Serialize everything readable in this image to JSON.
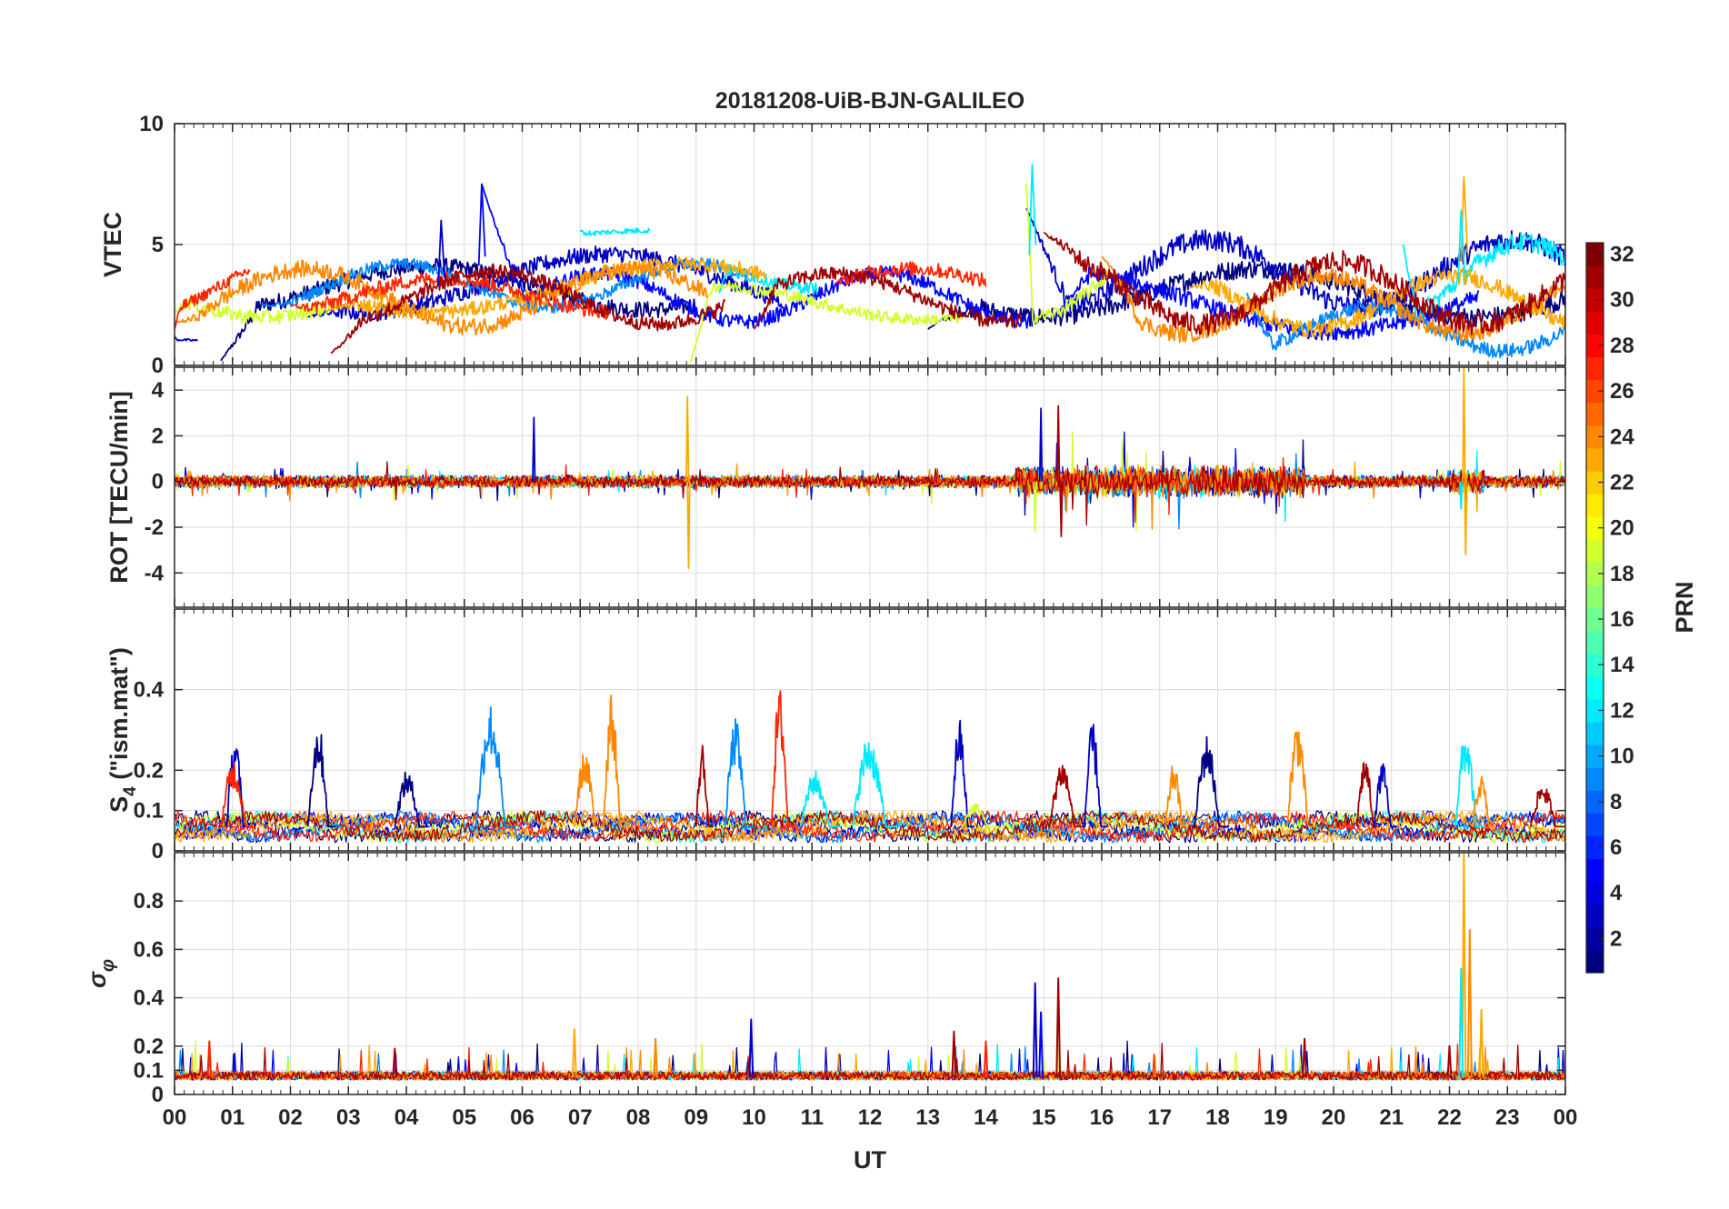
{
  "chart_data": {
    "type": "line",
    "title": "20181208-UiB-BJN-GALILEO",
    "xlabel": "UT",
    "x_ticks": [
      "00",
      "01",
      "02",
      "03",
      "04",
      "05",
      "06",
      "07",
      "08",
      "09",
      "10",
      "11",
      "12",
      "13",
      "14",
      "15",
      "16",
      "17",
      "18",
      "19",
      "20",
      "21",
      "22",
      "23",
      "00"
    ],
    "xlim": [
      0,
      24
    ],
    "grid": true,
    "colorbar": {
      "label": "PRN",
      "colormap": "jet",
      "range": [
        1,
        32
      ],
      "ticks": [
        "2",
        "4",
        "6",
        "8",
        "10",
        "12",
        "14",
        "16",
        "18",
        "20",
        "22",
        "24",
        "26",
        "28",
        "30",
        "32"
      ]
    },
    "panels": [
      {
        "id": "vtec",
        "ylabel": "VTEC",
        "ylim": [
          0,
          10
        ],
        "yticks": [
          0,
          5,
          10
        ],
        "ytick_labels": [
          "0",
          "5",
          "10"
        ],
        "series": [
          {
            "prn": 1,
            "segments": [
              {
                "t0": 0.8,
                "t1": 9.0,
                "base": 3.2,
                "amp": 0.9,
                "noise": 0.35,
                "start": 0.2
              },
              {
                "t0": 13.0,
                "t1": 24.0,
                "base": 3.0,
                "amp": 1.0,
                "noise": 0.4,
                "start": 1.5
              }
            ]
          },
          {
            "prn": 3,
            "segments": [
              {
                "t0": 0.0,
                "t1": 0.4,
                "base": 1.1,
                "amp": 0.1,
                "noise": 0.05,
                "start": 1.2
              },
              {
                "t0": 2.3,
                "t1": 10.5,
                "base": 3.4,
                "amp": 1.2,
                "noise": 0.35,
                "start": 2.0
              },
              {
                "t0": 14.7,
                "t1": 24.0,
                "base": 3.8,
                "amp": 1.4,
                "noise": 0.45,
                "start": 6.5
              }
            ]
          },
          {
            "prn": 5,
            "segments": [
              {
                "t0": 5.3,
                "t1": 14.8,
                "base": 2.8,
                "amp": 1.0,
                "noise": 0.3,
                "start": 7.5
              },
              {
                "t0": 15.2,
                "t1": 22.5,
                "base": 2.6,
                "amp": 1.2,
                "noise": 0.35,
                "start": 2.0
              }
            ]
          },
          {
            "prn": 9,
            "segments": [
              {
                "t0": 1.5,
                "t1": 10.0,
                "base": 3.3,
                "amp": 0.9,
                "noise": 0.25,
                "start": 2.5
              },
              {
                "t0": 18.5,
                "t1": 24.0,
                "base": 1.5,
                "amp": 0.9,
                "noise": 0.3,
                "start": 3.0
              }
            ]
          },
          {
            "prn": 12,
            "segments": [
              {
                "t0": 7.0,
                "t1": 8.2,
                "base": 5.3,
                "amp": 0.3,
                "noise": 0.12,
                "start": 5.6
              },
              {
                "t0": 9.4,
                "t1": 11.1,
                "base": 3.7,
                "amp": 0.5,
                "noise": 0.25,
                "start": 3.0
              },
              {
                "t0": 21.2,
                "t1": 24.0,
                "base": 3.5,
                "amp": 1.6,
                "noise": 0.4,
                "start": 5.0
              }
            ]
          },
          {
            "prn": 19,
            "segments": [
              {
                "t0": 0.0,
                "t1": 2.9,
                "base": 2.8,
                "amp": 0.8,
                "noise": 0.3,
                "start": 2.2
              },
              {
                "t0": 8.9,
                "t1": 13.6,
                "base": 2.6,
                "amp": 0.7,
                "noise": 0.25,
                "start": 0.1
              },
              {
                "t0": 14.7,
                "t1": 16.1,
                "base": 3.6,
                "amp": 1.6,
                "noise": 0.3,
                "start": 7.5
              }
            ]
          },
          {
            "prn": 23,
            "segments": [
              {
                "t0": 2.6,
                "t1": 10.2,
                "base": 3.2,
                "amp": 1.0,
                "noise": 0.3,
                "start": 2.2
              },
              {
                "t0": 17.5,
                "t1": 24.0,
                "base": 2.6,
                "amp": 1.1,
                "noise": 0.35,
                "start": 3.2
              }
            ]
          },
          {
            "prn": 24,
            "segments": [
              {
                "t0": 0.0,
                "t1": 9.2,
                "base": 2.8,
                "amp": 1.2,
                "noise": 0.35,
                "start": 1.8
              },
              {
                "t0": 16.0,
                "t1": 24.0,
                "base": 2.5,
                "amp": 1.2,
                "noise": 0.35,
                "start": 4.5
              }
            ]
          },
          {
            "prn": 27,
            "segments": [
              {
                "t0": 0.0,
                "t1": 1.3,
                "base": 3.2,
                "amp": 1.4,
                "noise": 0.25,
                "start": 1.5
              },
              {
                "t0": 2.0,
                "t1": 7.5,
                "base": 2.9,
                "amp": 0.7,
                "noise": 0.3,
                "start": 2.5
              },
              {
                "t0": 11.4,
                "t1": 14.0,
                "base": 3.2,
                "amp": 0.8,
                "noise": 0.3,
                "start": 3.4
              }
            ]
          },
          {
            "prn": 31,
            "segments": [
              {
                "t0": 2.7,
                "t1": 9.5,
                "base": 2.8,
                "amp": 1.1,
                "noise": 0.3,
                "start": 0.5
              },
              {
                "t0": 10.0,
                "t1": 14.6,
                "base": 2.8,
                "amp": 1.0,
                "noise": 0.3,
                "start": 1.5
              },
              {
                "t0": 15.0,
                "t1": 24.0,
                "base": 3.0,
                "amp": 1.3,
                "noise": 0.45,
                "start": 5.5
              }
            ]
          }
        ],
        "spikes": [
          {
            "prn": 5,
            "t": 5.3,
            "y": 7.5
          },
          {
            "prn": 12,
            "t": 14.8,
            "y": 8.3
          },
          {
            "prn": 23,
            "t": 22.25,
            "y": 7.8
          },
          {
            "prn": 12,
            "t": 22.2,
            "y": 6.4
          },
          {
            "prn": 3,
            "t": 4.6,
            "y": 6.0
          }
        ]
      },
      {
        "id": "rot",
        "ylabel": "ROT [TECU/min]",
        "ylim": [
          -5.5,
          5.0
        ],
        "yticks": [
          -4,
          -2,
          0,
          2,
          4
        ],
        "ytick_labels": [
          "-4",
          "-2",
          "0",
          "2",
          "4"
        ],
        "active_windows": [
          {
            "t0": 14.5,
            "t1": 19.5,
            "scale": 2.5
          },
          {
            "t0": 22.0,
            "t1": 22.6,
            "scale": 2.0
          }
        ],
        "spikes": [
          {
            "prn": 23,
            "t": 8.85,
            "y": 3.7
          },
          {
            "prn": 23,
            "t": 8.87,
            "y": -3.8
          },
          {
            "prn": 23,
            "t": 22.25,
            "y": 5.0
          },
          {
            "prn": 23,
            "t": 22.28,
            "y": -3.2
          },
          {
            "prn": 3,
            "t": 6.2,
            "y": 2.8
          },
          {
            "prn": 3,
            "t": 14.95,
            "y": 3.2
          },
          {
            "prn": 31,
            "t": 15.25,
            "y": 3.3
          },
          {
            "prn": 31,
            "t": 15.3,
            "y": -2.4
          },
          {
            "prn": 19,
            "t": 14.85,
            "y": -2.2
          },
          {
            "prn": 12,
            "t": 22.2,
            "y": -1.2
          }
        ]
      },
      {
        "id": "s4",
        "ylabel": "S4 (\"ism.mat\")",
        "ylabel_main": "S",
        "ylabel_sub": "4",
        "ylabel_rest": " (\"ism.mat\")",
        "ylim": [
          0,
          0.6
        ],
        "yticks": [
          0,
          0.1,
          0.2,
          0.4
        ],
        "ytick_labels": [
          "0",
          "0.1",
          "0.2",
          "0.4"
        ],
        "bursts": [
          {
            "prn": 3,
            "t0": 0.9,
            "t1": 1.3,
            "peak": 0.29
          },
          {
            "prn": 27,
            "t0": 0.8,
            "t1": 1.4,
            "peak": 0.23
          },
          {
            "prn": 1,
            "t0": 2.3,
            "t1": 2.8,
            "peak": 0.32
          },
          {
            "prn": 1,
            "t0": 3.8,
            "t1": 4.4,
            "peak": 0.2
          },
          {
            "prn": 9,
            "t0": 5.2,
            "t1": 5.9,
            "peak": 0.37
          },
          {
            "prn": 24,
            "t0": 6.9,
            "t1": 7.4,
            "peak": 0.25
          },
          {
            "prn": 24,
            "t0": 7.4,
            "t1": 7.8,
            "peak": 0.39
          },
          {
            "prn": 31,
            "t0": 9.0,
            "t1": 9.3,
            "peak": 0.27
          },
          {
            "prn": 9,
            "t0": 9.5,
            "t1": 10.0,
            "peak": 0.33
          },
          {
            "prn": 27,
            "t0": 10.3,
            "t1": 10.7,
            "peak": 0.41
          },
          {
            "prn": 12,
            "t0": 10.8,
            "t1": 11.5,
            "peak": 0.2
          },
          {
            "prn": 12,
            "t0": 11.7,
            "t1": 12.5,
            "peak": 0.29
          },
          {
            "prn": 3,
            "t0": 13.4,
            "t1": 13.8,
            "peak": 0.33
          },
          {
            "prn": 19,
            "t0": 13.6,
            "t1": 14.2,
            "peak": 0.12
          },
          {
            "prn": 31,
            "t0": 15.1,
            "t1": 15.7,
            "peak": 0.23
          },
          {
            "prn": 3,
            "t0": 15.7,
            "t1": 16.1,
            "peak": 0.32
          },
          {
            "prn": 24,
            "t0": 17.1,
            "t1": 17.5,
            "peak": 0.22
          },
          {
            "prn": 1,
            "t0": 17.6,
            "t1": 18.2,
            "peak": 0.29
          },
          {
            "prn": 24,
            "t0": 19.2,
            "t1": 19.7,
            "peak": 0.33
          },
          {
            "prn": 31,
            "t0": 20.4,
            "t1": 20.8,
            "peak": 0.24
          },
          {
            "prn": 3,
            "t0": 20.7,
            "t1": 21.1,
            "peak": 0.22
          },
          {
            "prn": 12,
            "t0": 22.1,
            "t1": 22.6,
            "peak": 0.3
          },
          {
            "prn": 24,
            "t0": 22.4,
            "t1": 22.8,
            "peak": 0.19
          },
          {
            "prn": 31,
            "t0": 23.4,
            "t1": 24.0,
            "peak": 0.17
          }
        ]
      },
      {
        "id": "sigma",
        "ylabel": "σφ",
        "ylabel_main": "σ",
        "ylabel_sub": "φ",
        "ylim": [
          0,
          1.0
        ],
        "yticks": [
          0,
          0.1,
          0.2,
          0.4,
          0.6,
          0.8
        ],
        "ytick_labels": [
          "0",
          "0.1",
          "0.2",
          "0.4",
          "0.6",
          "0.8"
        ],
        "spikes": [
          {
            "prn": 23,
            "t": 22.25,
            "y": 1.0
          },
          {
            "prn": 24,
            "t": 22.35,
            "y": 0.68
          },
          {
            "prn": 23,
            "t": 22.55,
            "y": 0.35
          },
          {
            "prn": 12,
            "t": 22.2,
            "y": 0.52
          },
          {
            "prn": 3,
            "t": 14.85,
            "y": 0.46
          },
          {
            "prn": 31,
            "t": 15.25,
            "y": 0.48
          },
          {
            "prn": 5,
            "t": 14.95,
            "y": 0.34
          },
          {
            "prn": 3,
            "t": 9.95,
            "y": 0.31
          },
          {
            "prn": 24,
            "t": 8.3,
            "y": 0.23
          },
          {
            "prn": 23,
            "t": 6.9,
            "y": 0.27
          },
          {
            "prn": 27,
            "t": 0.6,
            "y": 0.22
          },
          {
            "prn": 31,
            "t": 13.45,
            "y": 0.26
          },
          {
            "prn": 27,
            "t": 14.0,
            "y": 0.22
          },
          {
            "prn": 31,
            "t": 19.5,
            "y": 0.23
          },
          {
            "prn": 31,
            "t": 3.8,
            "y": 0.19
          },
          {
            "prn": 31,
            "t": 22.0,
            "y": 0.2
          }
        ]
      }
    ]
  }
}
